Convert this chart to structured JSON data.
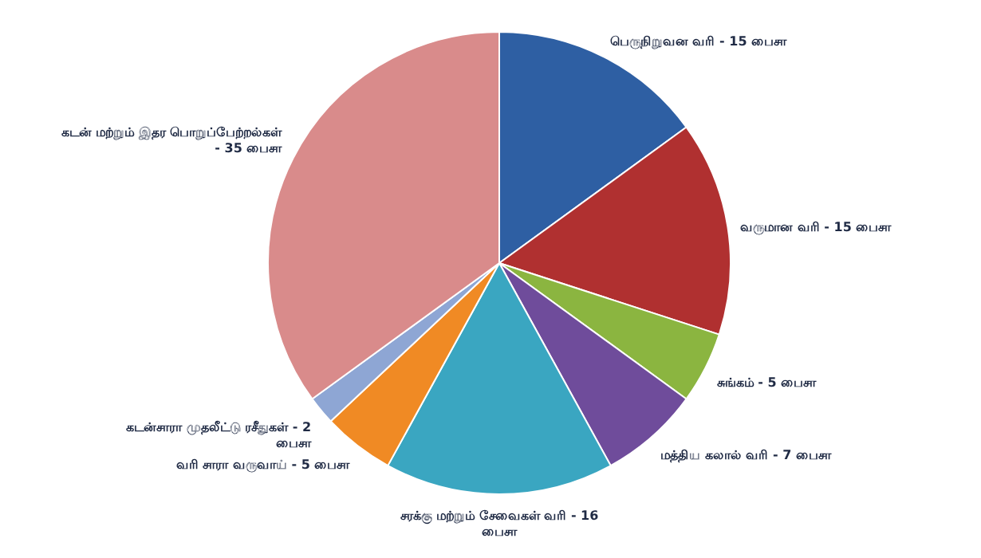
{
  "chart_data": {
    "type": "pie",
    "categories": [
      "பெருநிறுவன வரி - 15 பைசா",
      "வருமான வரி - 15 பைசா",
      "சுங்கம் - 5 பைசா",
      "மத்திய கலால் வரி - 7 பைசா",
      "சரக்கு மற்றும் சேவைகள் வரி - 16 பைசா",
      "வரி சாரா வருவாய் - 5 பைசா",
      "கடன்சாரா முதலீட்டு ரசீதுகள் - 2 பைசா",
      "கடன் மற்றும் இதர பொறுப்பேற்றல்கள் - 35 பைசா"
    ],
    "values": [
      15,
      15,
      5,
      7,
      16,
      5,
      2,
      35
    ],
    "colors": [
      "#2e5fa3",
      "#b03030",
      "#8bb540",
      "#6f4c9b",
      "#3aa6c1",
      "#f08a24",
      "#8ea6d4",
      "#d98b8b"
    ]
  }
}
